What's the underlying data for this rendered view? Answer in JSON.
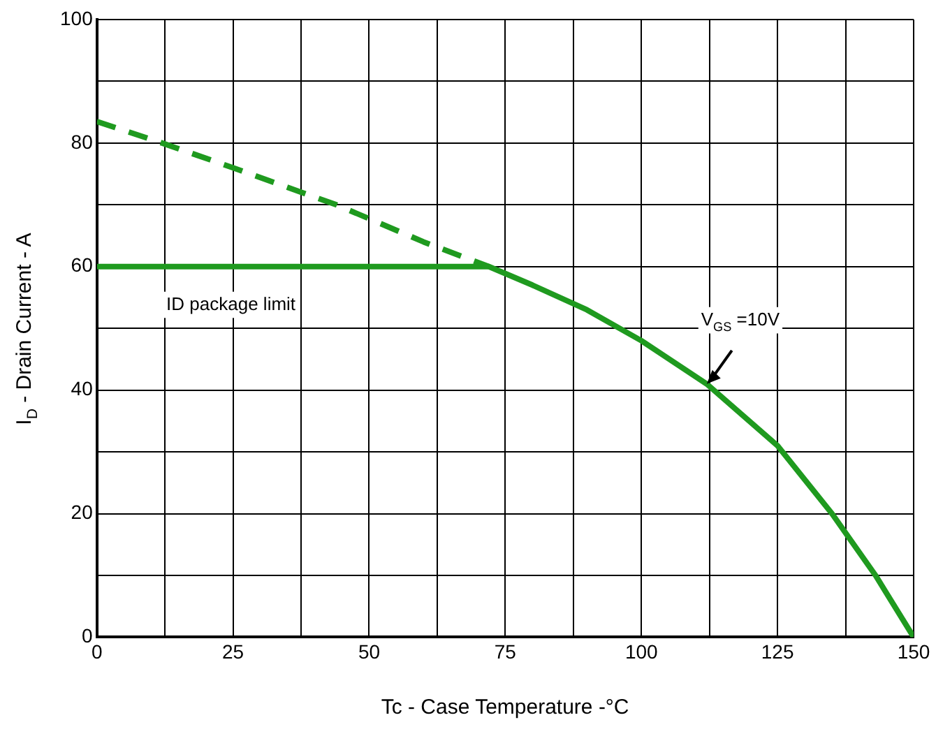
{
  "chart_data": {
    "type": "line",
    "xlabel": "Tc - Case Temperature -°C",
    "ylabel": "I$_{D}$ - Drain Current - A",
    "xlim": [
      0,
      150
    ],
    "ylim": [
      0,
      100
    ],
    "xticks": [
      0,
      {
        "value": 12.5,
        "label": null
      },
      25,
      {
        "value": 37.5,
        "label": null
      },
      50,
      {
        "value": 62.5,
        "label": null
      },
      75,
      {
        "value": 87.5,
        "label": null
      },
      100,
      {
        "value": 112.5,
        "label": null
      },
      125,
      {
        "value": 137.5,
        "label": null
      },
      150
    ],
    "yticks": [
      0,
      {
        "value": 10,
        "label": null
      },
      20,
      {
        "value": 30,
        "label": null
      },
      40,
      {
        "value": 50,
        "label": null
      },
      60,
      {
        "value": 70,
        "label": null
      },
      80,
      {
        "value": 90,
        "label": null
      },
      100
    ],
    "grid": true,
    "legend": false,
    "marker": "none",
    "series": [
      {
        "color": "#1f9a1f",
        "line_style": "dashed",
        "x": [
          0,
          12,
          25,
          44,
          60,
          72
        ],
        "values": [
          83.5,
          80,
          76,
          70,
          64,
          60
        ]
      },
      {
        "color": "#1f9a1f",
        "line_style": "solid",
        "x": [
          0,
          72,
          80,
          90,
          100,
          112,
          125,
          135,
          143,
          150
        ],
        "values": [
          60,
          60,
          57,
          53,
          48,
          41,
          31,
          20,
          10,
          0
        ]
      }
    ],
    "annotations": [
      "ID package limit",
      {
        "text": "V$_{GS}$ =10V",
        "x": 112,
        "y": 41
      }
    ]
  }
}
